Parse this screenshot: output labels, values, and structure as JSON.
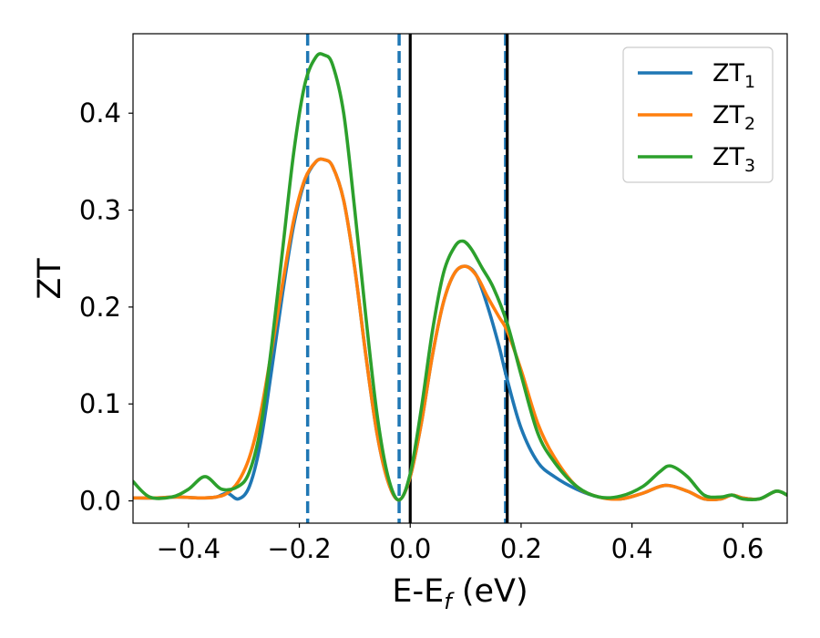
{
  "chart_data": {
    "type": "line",
    "title": "",
    "xlabel": {
      "main": "E-E",
      "sub": "f",
      "tail": " (eV)"
    },
    "ylabel": "ZT",
    "xlim": [
      -0.5,
      0.68
    ],
    "ylim": [
      -0.023,
      0.482
    ],
    "xticks": [
      {
        "value": -0.4,
        "label": "−0.4"
      },
      {
        "value": -0.2,
        "label": "−0.2"
      },
      {
        "value": 0.0,
        "label": "0.0"
      },
      {
        "value": 0.2,
        "label": "0.2"
      },
      {
        "value": 0.4,
        "label": "0.4"
      },
      {
        "value": 0.6,
        "label": "0.6"
      }
    ],
    "yticks": [
      {
        "value": 0.0,
        "label": "0.0"
      },
      {
        "value": 0.1,
        "label": "0.1"
      },
      {
        "value": 0.2,
        "label": "0.2"
      },
      {
        "value": 0.3,
        "label": "0.3"
      },
      {
        "value": 0.4,
        "label": "0.4"
      }
    ],
    "grid": false,
    "legend_position": "top-right",
    "vlines": [
      {
        "x": -0.185,
        "style": "dashed",
        "color": "#1f77b4"
      },
      {
        "x": -0.02,
        "style": "dashed",
        "color": "#1f77b4"
      },
      {
        "x": 0.0,
        "style": "solid",
        "color": "#000000"
      },
      {
        "x": 0.172,
        "style": "dashed",
        "color": "#1f77b4"
      },
      {
        "x": 0.175,
        "style": "solid",
        "color": "#000000"
      }
    ],
    "series": [
      {
        "name": "ZT",
        "sub": "1",
        "color": "#1f77b4",
        "x": [
          -0.5,
          -0.46,
          -0.42,
          -0.38,
          -0.35,
          -0.33,
          -0.31,
          -0.29,
          -0.27,
          -0.25,
          -0.23,
          -0.21,
          -0.19,
          -0.17,
          -0.155,
          -0.14,
          -0.12,
          -0.1,
          -0.08,
          -0.06,
          -0.04,
          -0.02,
          0.0,
          0.02,
          0.04,
          0.06,
          0.08,
          0.1,
          0.12,
          0.14,
          0.16,
          0.175,
          0.2,
          0.23,
          0.26,
          0.3,
          0.34,
          0.38,
          0.42,
          0.46,
          0.5,
          0.53,
          0.56,
          0.58,
          0.6,
          0.63,
          0.66,
          0.68
        ],
        "y": [
          0.003,
          0.003,
          0.004,
          0.003,
          0.004,
          0.008,
          0.002,
          0.015,
          0.06,
          0.135,
          0.215,
          0.285,
          0.33,
          0.35,
          0.352,
          0.345,
          0.31,
          0.24,
          0.15,
          0.07,
          0.02,
          0.001,
          0.025,
          0.08,
          0.15,
          0.205,
          0.235,
          0.242,
          0.232,
          0.2,
          0.16,
          0.125,
          0.075,
          0.04,
          0.025,
          0.012,
          0.004,
          0.002,
          0.008,
          0.016,
          0.01,
          0.002,
          0.002,
          0.006,
          0.003,
          0.002,
          0.01,
          0.006
        ]
      },
      {
        "name": "ZT",
        "sub": "2",
        "color": "#ff7f0e",
        "x": [
          -0.5,
          -0.46,
          -0.42,
          -0.38,
          -0.35,
          -0.33,
          -0.31,
          -0.29,
          -0.27,
          -0.25,
          -0.23,
          -0.21,
          -0.19,
          -0.17,
          -0.155,
          -0.14,
          -0.12,
          -0.1,
          -0.08,
          -0.06,
          -0.04,
          -0.02,
          0.0,
          0.02,
          0.04,
          0.06,
          0.08,
          0.1,
          0.12,
          0.14,
          0.16,
          0.175,
          0.2,
          0.23,
          0.26,
          0.3,
          0.34,
          0.38,
          0.42,
          0.46,
          0.5,
          0.53,
          0.56,
          0.58,
          0.6,
          0.63,
          0.66,
          0.68
        ],
        "y": [
          0.003,
          0.003,
          0.004,
          0.003,
          0.004,
          0.008,
          0.02,
          0.045,
          0.09,
          0.155,
          0.225,
          0.29,
          0.332,
          0.35,
          0.352,
          0.345,
          0.31,
          0.24,
          0.15,
          0.07,
          0.02,
          0.001,
          0.025,
          0.08,
          0.15,
          0.205,
          0.235,
          0.242,
          0.232,
          0.21,
          0.19,
          0.175,
          0.135,
          0.08,
          0.045,
          0.015,
          0.004,
          0.002,
          0.008,
          0.016,
          0.01,
          0.002,
          0.002,
          0.006,
          0.003,
          0.002,
          0.01,
          0.006
        ]
      },
      {
        "name": "ZT",
        "sub": "3",
        "color": "#2ca02c",
        "x": [
          -0.5,
          -0.47,
          -0.43,
          -0.4,
          -0.37,
          -0.34,
          -0.31,
          -0.29,
          -0.27,
          -0.25,
          -0.23,
          -0.21,
          -0.19,
          -0.17,
          -0.155,
          -0.14,
          -0.12,
          -0.1,
          -0.08,
          -0.06,
          -0.04,
          -0.02,
          0.0,
          0.02,
          0.04,
          0.06,
          0.08,
          0.095,
          0.11,
          0.13,
          0.15,
          0.175,
          0.2,
          0.23,
          0.26,
          0.3,
          0.34,
          0.38,
          0.42,
          0.45,
          0.47,
          0.5,
          0.53,
          0.56,
          0.58,
          0.6,
          0.63,
          0.66,
          0.68
        ],
        "y": [
          0.02,
          0.004,
          0.004,
          0.012,
          0.025,
          0.012,
          0.015,
          0.03,
          0.075,
          0.16,
          0.26,
          0.36,
          0.43,
          0.458,
          0.46,
          0.45,
          0.4,
          0.3,
          0.19,
          0.09,
          0.025,
          0.001,
          0.028,
          0.095,
          0.175,
          0.235,
          0.262,
          0.268,
          0.26,
          0.24,
          0.22,
          0.183,
          0.13,
          0.07,
          0.04,
          0.015,
          0.004,
          0.005,
          0.015,
          0.03,
          0.036,
          0.025,
          0.006,
          0.004,
          0.006,
          0.002,
          0.002,
          0.01,
          0.006
        ]
      }
    ]
  }
}
